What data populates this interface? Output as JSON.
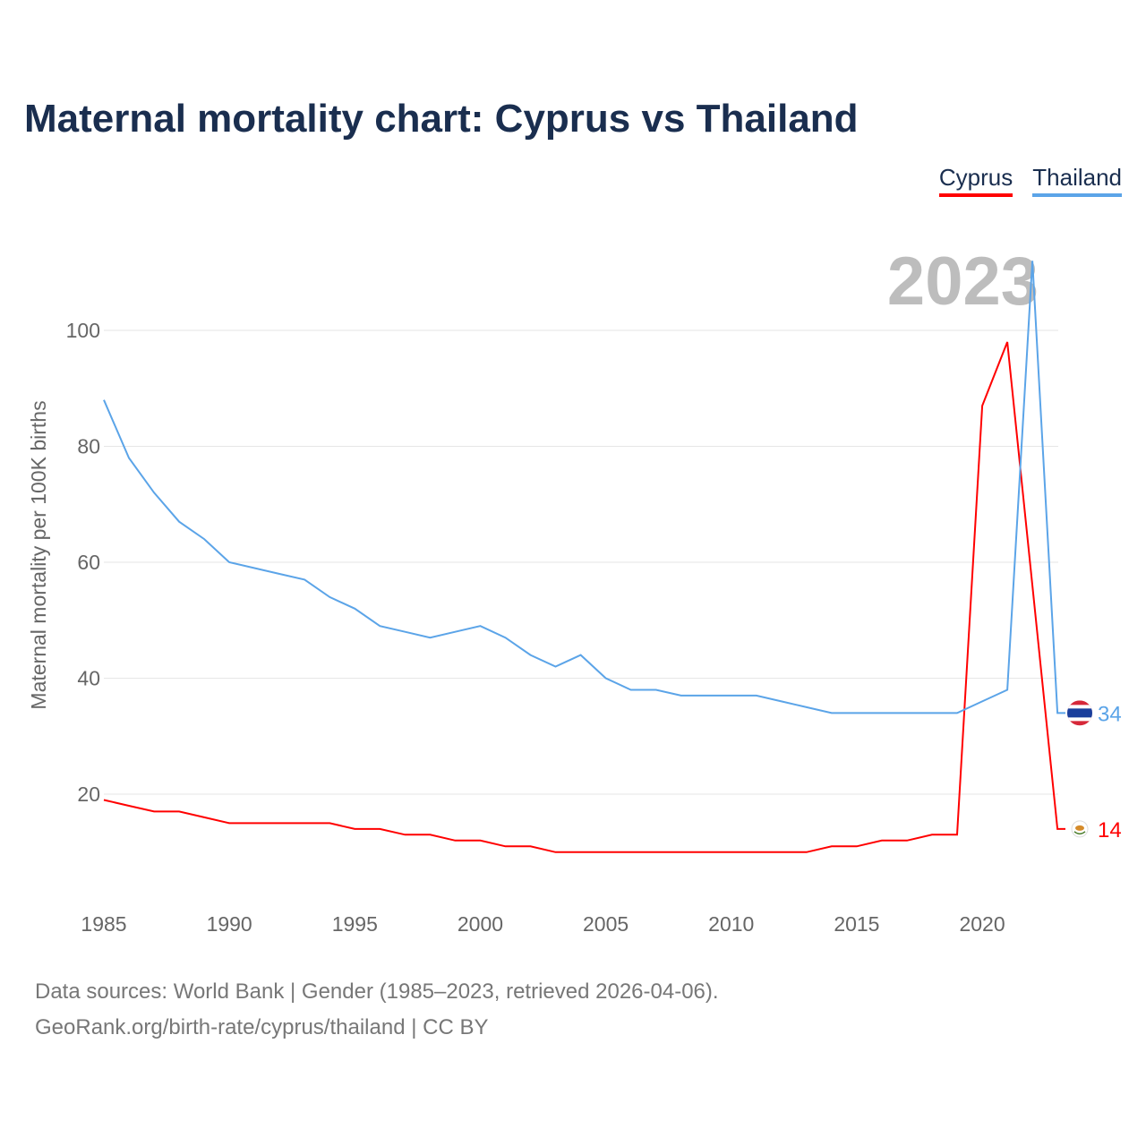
{
  "title": "Maternal mortality chart: Cyprus vs Thailand",
  "footer": {
    "line1": "Data sources: World Bank | Gender (1985–2023, retrieved 2026-04-06).",
    "line2": "GeoRank.org/birth-rate/cyprus/thailand | CC BY"
  },
  "chart_data": {
    "type": "line",
    "title": "Maternal mortality chart: Cyprus vs Thailand",
    "ylabel": "Maternal mortality per 100K births",
    "xlabel": "",
    "year_label": "2023",
    "xlim": [
      1985,
      2023
    ],
    "ylim": [
      0,
      110
    ],
    "xticks": [
      1985,
      1990,
      1995,
      2000,
      2005,
      2010,
      2015,
      2020
    ],
    "yticks": [
      20,
      40,
      60,
      80,
      100
    ],
    "legend": "top-right",
    "x": [
      1985,
      1986,
      1987,
      1988,
      1989,
      1990,
      1991,
      1992,
      1993,
      1994,
      1995,
      1996,
      1997,
      1998,
      1999,
      2000,
      2001,
      2002,
      2003,
      2004,
      2005,
      2006,
      2007,
      2008,
      2009,
      2010,
      2011,
      2012,
      2013,
      2014,
      2015,
      2016,
      2017,
      2018,
      2019,
      2020,
      2021,
      2022,
      2023
    ],
    "series": [
      {
        "name": "Cyprus",
        "color": "#ff0000",
        "end_label": "14",
        "values": [
          19,
          18,
          17,
          17,
          16,
          15,
          15,
          15,
          15,
          15,
          14,
          14,
          13,
          13,
          12,
          12,
          11,
          11,
          10,
          10,
          10,
          10,
          10,
          10,
          10,
          10,
          10,
          10,
          10,
          11,
          11,
          12,
          12,
          13,
          13,
          87,
          98,
          56,
          14
        ]
      },
      {
        "name": "Thailand",
        "color": "#5ba4e8",
        "end_label": "34",
        "values": [
          88,
          78,
          72,
          67,
          64,
          60,
          59,
          58,
          57,
          54,
          52,
          49,
          48,
          47,
          48,
          49,
          47,
          44,
          42,
          44,
          40,
          38,
          38,
          37,
          37,
          37,
          37,
          36,
          35,
          34,
          34,
          34,
          34,
          34,
          34,
          36,
          38,
          112,
          34
        ]
      }
    ]
  }
}
